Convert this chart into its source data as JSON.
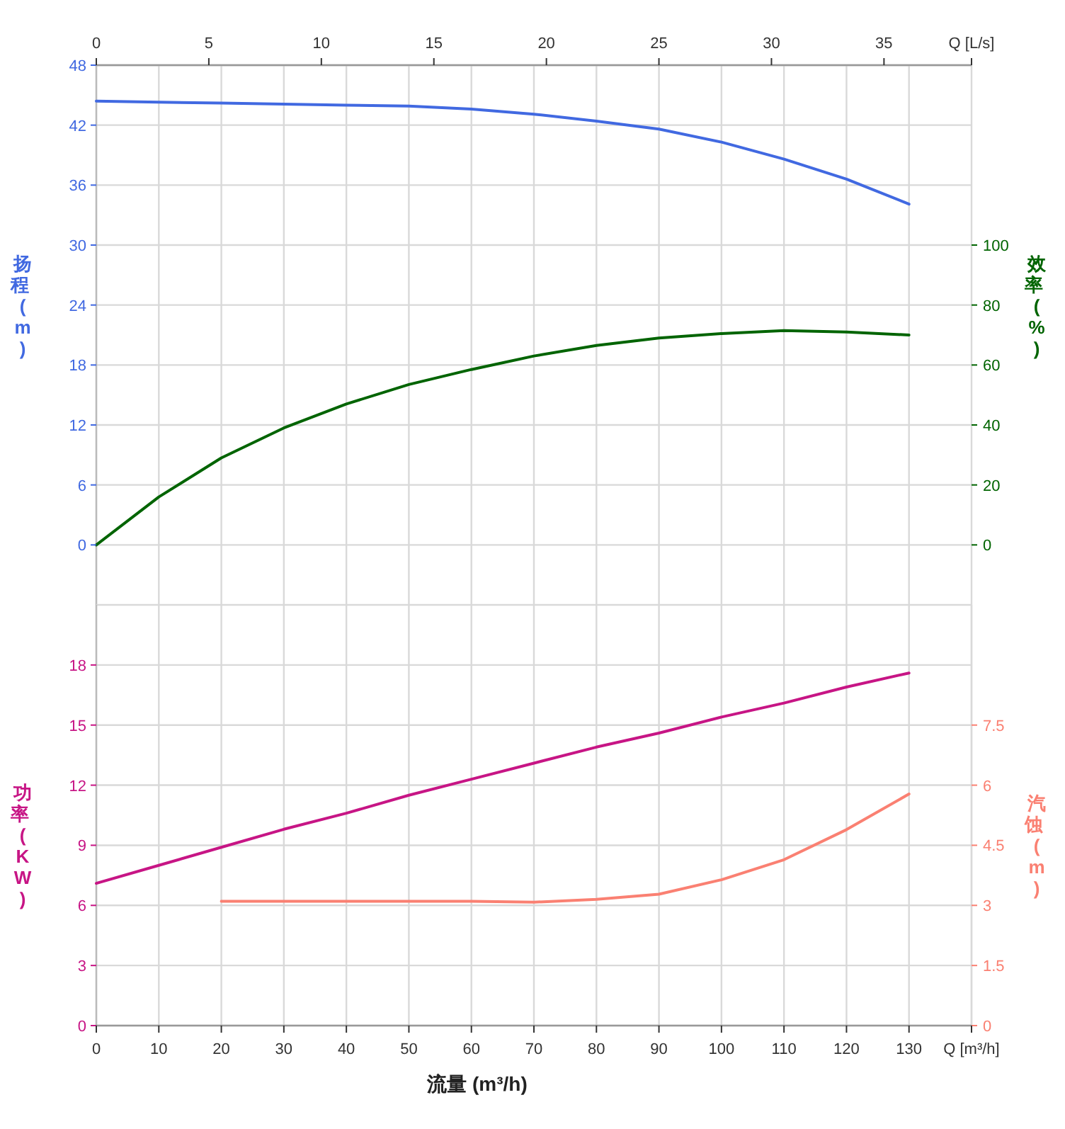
{
  "chart_data": [
    {
      "type": "line",
      "ylabel": "扬程 (m)",
      "y2label": "效率 (%)",
      "xlim": [
        0,
        140
      ],
      "xticks": [
        0,
        10,
        20,
        30,
        40,
        50,
        60,
        70,
        80,
        90,
        100,
        110,
        120,
        130
      ],
      "tick_labels": "y",
      "x2lim": [
        0,
        38.89
      ],
      "x2ticks": [
        0,
        5,
        10,
        15,
        20,
        25,
        30,
        35,
        {
          "value": 38.89,
          "label": "Q [L/s]"
        }
      ],
      "ylim": [
        -6,
        48
      ],
      "yticks": [
        0,
        6,
        12,
        18,
        24,
        30,
        36,
        42,
        48
      ],
      "y2lim": [
        -20,
        160
      ],
      "y2ticks": [
        0,
        20,
        40,
        60,
        80,
        100
      ],
      "grid": true,
      "x": [
        0,
        10,
        20,
        30,
        40,
        50,
        60,
        70,
        80,
        90,
        100,
        110,
        120,
        130
      ],
      "series": [
        {
          "color": "#4169e1",
          "values": [
            44.4,
            44.3,
            44.2,
            44.1,
            44.0,
            43.9,
            43.6,
            43.1,
            42.4,
            41.6,
            40.3,
            38.6,
            36.6,
            34.1
          ]
        },
        {
          "color": "#006400",
          "axis": "y2",
          "values": [
            0,
            16,
            29,
            39,
            47,
            53.5,
            58.5,
            63,
            66.5,
            69,
            70.5,
            71.5,
            71,
            70
          ]
        }
      ]
    },
    {
      "type": "line",
      "xlabel": "流量 (m³/h)",
      "ylabel": "功率 (KW)",
      "y2label": "汽蚀 (m)",
      "xlim": [
        0,
        140
      ],
      "xticks": [
        0,
        10,
        20,
        30,
        40,
        50,
        60,
        70,
        80,
        90,
        100,
        110,
        120,
        130,
        {
          "value": 140,
          "label": "Q [m³/h]"
        }
      ],
      "ylim": [
        0,
        21
      ],
      "yticks": [
        0,
        3,
        6,
        9,
        12,
        15,
        18
      ],
      "y2lim": [
        0,
        10.5
      ],
      "y2ticks": [
        0,
        1.5,
        3,
        4.5,
        6,
        7.5
      ],
      "grid": true,
      "series": [
        {
          "color": "#c71585",
          "x": [
            0,
            10,
            20,
            30,
            40,
            50,
            60,
            70,
            80,
            90,
            100,
            110,
            120,
            130
          ],
          "values": [
            7.1,
            8.0,
            8.9,
            9.8,
            10.6,
            11.5,
            12.3,
            13.1,
            13.9,
            14.6,
            15.4,
            16.1,
            16.9,
            17.6
          ]
        },
        {
          "color": "#fa8072",
          "axis": "y2",
          "x": [
            20,
            30,
            40,
            50,
            60,
            70,
            80,
            90,
            100,
            110,
            120,
            130
          ],
          "values": [
            3.1,
            3.1,
            3.1,
            3.1,
            3.1,
            3.08,
            3.15,
            3.28,
            3.64,
            4.14,
            4.89,
            5.78
          ]
        }
      ]
    }
  ]
}
